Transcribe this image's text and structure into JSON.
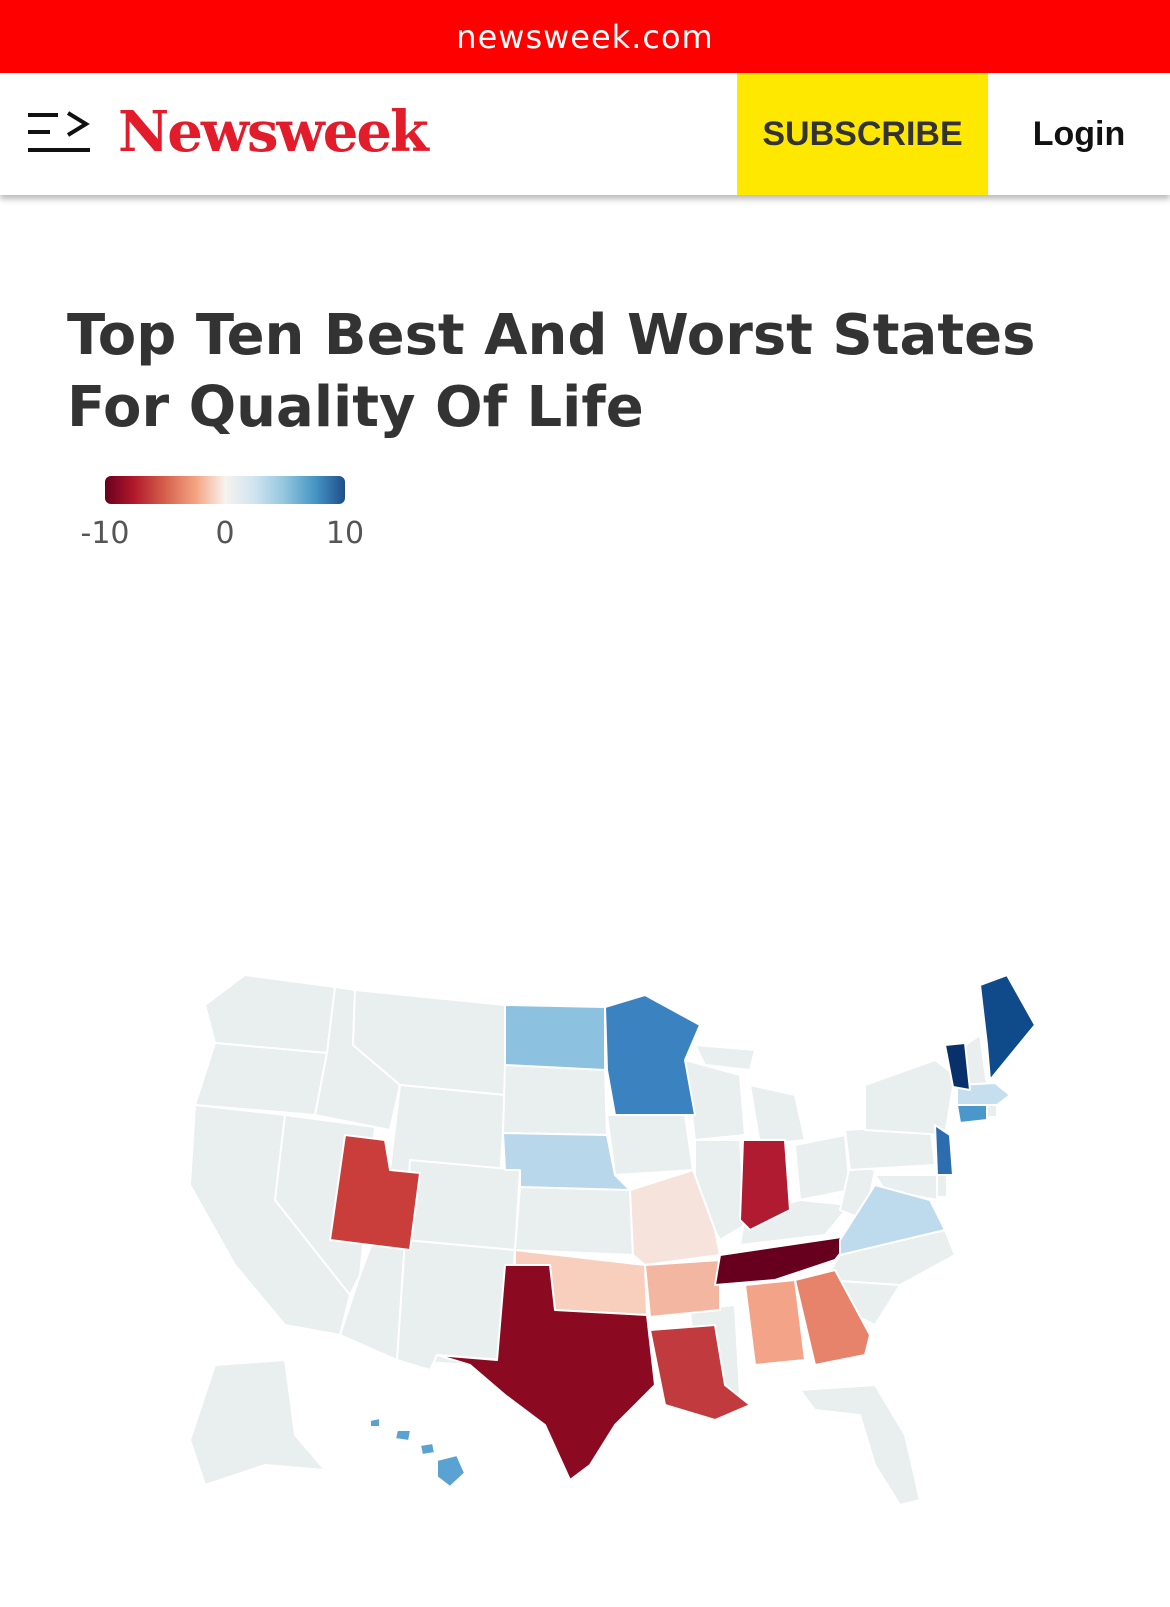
{
  "browser": {
    "url": "newsweek.com"
  },
  "header": {
    "logo_text": "Newsweek",
    "subscribe_label": "SUBSCRIBE",
    "login_label": "Login",
    "menu_icon": "menu-arrow-icon"
  },
  "article": {
    "title": "Top Ten Best And Worst States For Quality Of Life"
  },
  "chart_data": {
    "type": "choropleth",
    "title": "Top Ten Best And Worst States For Quality Of Life",
    "scale": {
      "min": -10,
      "max": 10,
      "ticks": [
        "-10",
        "0",
        "10"
      ]
    },
    "colors": {
      "neutral": "#e9eeee",
      "strong_negative": "#67001f",
      "strong_positive": "#08306b"
    },
    "regions": [
      {
        "name": "Tennessee",
        "value": -10
      },
      {
        "name": "Texas",
        "value": -9
      },
      {
        "name": "Indiana",
        "value": -8
      },
      {
        "name": "Utah",
        "value": -7
      },
      {
        "name": "Louisiana",
        "value": -7
      },
      {
        "name": "Georgia",
        "value": -5
      },
      {
        "name": "Alabama",
        "value": -4
      },
      {
        "name": "Arkansas",
        "value": -3
      },
      {
        "name": "Oklahoma",
        "value": -2
      },
      {
        "name": "Missouri",
        "value": -1
      },
      {
        "name": "Nebraska",
        "value": 2
      },
      {
        "name": "Massachusetts",
        "value": 2
      },
      {
        "name": "Virginia",
        "value": 3
      },
      {
        "name": "North Dakota",
        "value": 4
      },
      {
        "name": "Hawaii",
        "value": 5
      },
      {
        "name": "Connecticut",
        "value": 6
      },
      {
        "name": "Minnesota",
        "value": 7
      },
      {
        "name": "New Jersey",
        "value": 8
      },
      {
        "name": "Maine",
        "value": 9
      },
      {
        "name": "Vermont",
        "value": 10
      }
    ]
  }
}
